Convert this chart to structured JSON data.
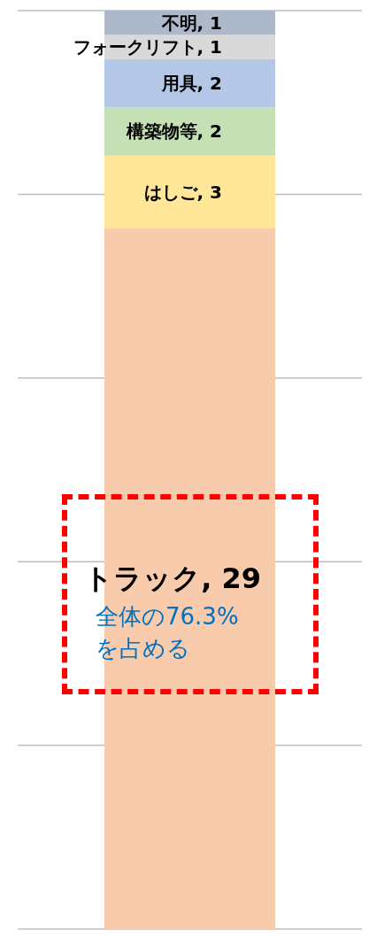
{
  "chart_data": {
    "type": "bar",
    "stacked": true,
    "categories": [
      null
    ],
    "series": [
      {
        "name": "トラック",
        "color": "#f8cbad",
        "values": [
          29
        ],
        "value_labels": [
          ", 29"
        ]
      },
      {
        "name": "はしご",
        "color": "#ffe699",
        "values": [
          3
        ],
        "value_labels": [
          ", 3"
        ]
      },
      {
        "name": "構築物等",
        "color": "#c5e0b4",
        "values": [
          2
        ],
        "value_labels": [
          ", 2"
        ]
      },
      {
        "name": "用具",
        "color": "#b4c7e7",
        "values": [
          2
        ],
        "value_labels": [
          ", 2"
        ]
      },
      {
        "name": "フォークリフト",
        "color": "#d9d9d9",
        "values": [
          1
        ],
        "value_labels": [
          ", 1"
        ]
      },
      {
        "name": "不明",
        "color": "#adb9ca",
        "values": [
          1
        ],
        "value_labels": [
          ", 1"
        ]
      }
    ],
    "grid": "y",
    "annotations": [
      "全体の76.3%を占める"
    ]
  }
}
